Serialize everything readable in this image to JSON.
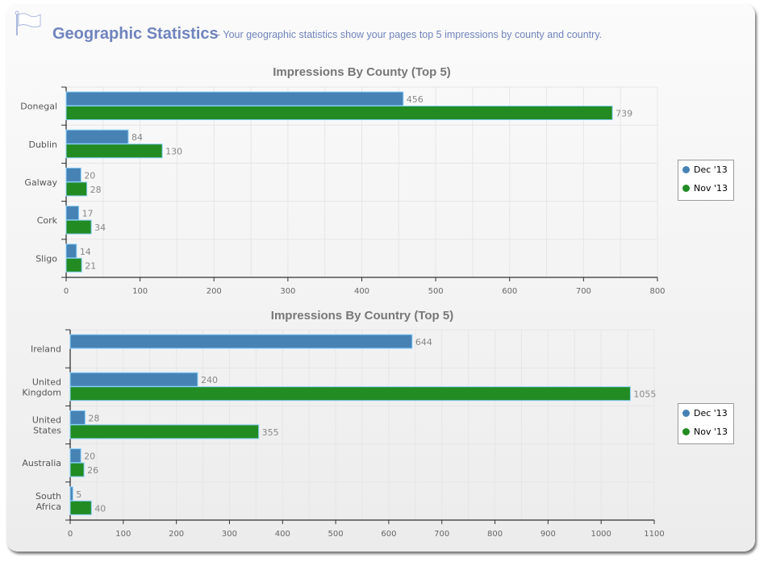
{
  "header": {
    "title": "Geographic Statistics",
    "subtitle": "- Your geographic statistics show your pages top 5 impressions by county and country."
  },
  "colors": {
    "dec": "#4682b4",
    "nov": "#228b22"
  },
  "chart_data": [
    {
      "type": "bar",
      "orientation": "horizontal",
      "title": "Impressions By County (Top 5)",
      "categories": [
        "Donegal",
        "Dublin",
        "Galway",
        "Cork",
        "Sligo"
      ],
      "series": [
        {
          "name": "Dec '13",
          "values": [
            456,
            84,
            20,
            17,
            14
          ]
        },
        {
          "name": "Nov '13",
          "values": [
            739,
            130,
            28,
            34,
            21
          ]
        }
      ],
      "xlim": [
        0,
        800
      ],
      "xticks": [
        0,
        100,
        200,
        300,
        400,
        500,
        600,
        700,
        800
      ],
      "legend": "right"
    },
    {
      "type": "bar",
      "orientation": "horizontal",
      "title": "Impressions By Country (Top 5)",
      "categories": [
        "Ireland",
        "United Kingdom",
        "United States",
        "Australia",
        "South Africa"
      ],
      "series": [
        {
          "name": "Dec '13",
          "values": [
            644,
            240,
            28,
            20,
            5
          ]
        },
        {
          "name": "Nov '13",
          "values": [
            null,
            1055,
            355,
            26,
            40
          ]
        }
      ],
      "xlim": [
        0,
        1100
      ],
      "xticks": [
        0,
        100,
        200,
        300,
        400,
        500,
        600,
        700,
        800,
        900,
        1000,
        1100
      ],
      "legend": "right"
    }
  ]
}
